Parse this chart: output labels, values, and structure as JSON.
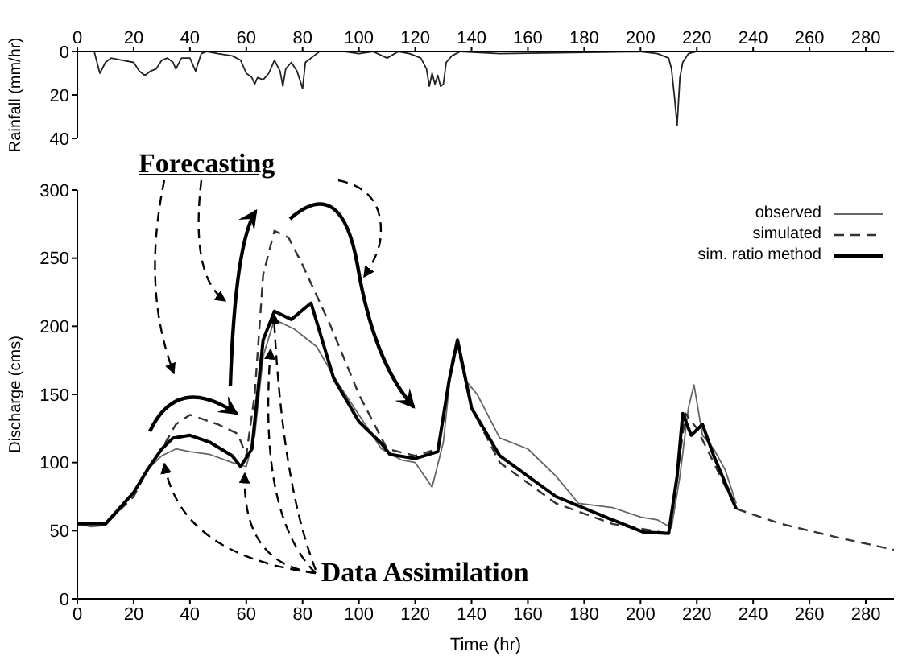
{
  "chart_data": [
    {
      "type": "line",
      "ylabel": "Rainfall (mm/hr)",
      "xlim": [
        0,
        290
      ],
      "xticks": [
        0,
        20,
        40,
        60,
        80,
        100,
        120,
        140,
        160,
        180,
        200,
        220,
        240,
        260,
        280
      ],
      "ylim": [
        40,
        0
      ],
      "yticks": [
        0,
        20,
        40
      ],
      "grid": false,
      "marker": "none",
      "series": [
        {
          "color": "#222222",
          "line_style": "solid",
          "x": [
            0,
            6,
            8,
            10,
            12,
            16,
            20,
            22,
            24,
            26,
            28,
            30,
            32,
            34,
            35,
            37,
            40,
            42,
            44,
            46,
            50,
            55,
            58,
            60,
            62,
            63,
            64,
            66,
            68,
            70,
            72,
            73,
            74,
            76,
            78,
            80,
            81,
            83,
            86,
            95,
            100,
            105,
            110,
            114,
            118,
            122,
            124,
            125,
            126,
            127,
            128,
            129,
            130,
            131,
            133,
            136,
            150,
            200,
            206,
            208,
            210,
            211,
            212,
            213,
            214,
            215,
            217,
            220,
            240,
            290
          ],
          "values": [
            0,
            0,
            10,
            5,
            3,
            4,
            5,
            9,
            11,
            9,
            8,
            4,
            3,
            5,
            8,
            3,
            3,
            9,
            1,
            0,
            1,
            2,
            4,
            10,
            12,
            15,
            12,
            13,
            10,
            4,
            9,
            16,
            8,
            5,
            9,
            17,
            5,
            3,
            0,
            0,
            1,
            0,
            3,
            0,
            1,
            3,
            8,
            16,
            10,
            15,
            11,
            16,
            15,
            5,
            2,
            0,
            1,
            0,
            1,
            2,
            3,
            8,
            20,
            34,
            12,
            5,
            1,
            0,
            0,
            0
          ]
        }
      ]
    },
    {
      "type": "line",
      "xlabel": "Time (hr)",
      "ylabel": "Discharge (cms)",
      "xlim": [
        0,
        290
      ],
      "xticks": [
        0,
        20,
        40,
        60,
        80,
        100,
        120,
        140,
        160,
        180,
        200,
        220,
        240,
        260,
        280
      ],
      "ylim": [
        0,
        300
      ],
      "yticks": [
        0,
        50,
        100,
        150,
        200,
        250,
        300
      ],
      "grid": false,
      "legend": "top right",
      "marker": "none",
      "annotations": [
        "Forecasting",
        {
          "text": "Data Assimilation",
          "x": 58,
          "y": 97
        }
      ],
      "series": [
        {
          "name": "observed",
          "color": "#666666",
          "line_style": "solid",
          "x": [
            0,
            5,
            10,
            15,
            20,
            25,
            30,
            35,
            40,
            47,
            55,
            60,
            63,
            66,
            70,
            77,
            85,
            92,
            100,
            108,
            115,
            120,
            126,
            130,
            133,
            135,
            138,
            142,
            150,
            160,
            170,
            178,
            190,
            200,
            206,
            211,
            214,
            217,
            219,
            222,
            226,
            230,
            234
          ],
          "values": [
            55,
            53,
            54,
            65,
            78,
            95,
            105,
            110,
            108,
            106,
            100,
            97,
            120,
            178,
            205,
            198,
            185,
            160,
            135,
            110,
            102,
            100,
            82,
            115,
            175,
            190,
            160,
            150,
            118,
            110,
            90,
            70,
            67,
            60,
            58,
            52,
            90,
            140,
            157,
            120,
            110,
            95,
            70
          ]
        },
        {
          "name": "simulated",
          "color": "#333333",
          "line_style": "dashed",
          "x": [
            0,
            10,
            20,
            25,
            30,
            35,
            40,
            50,
            57,
            60,
            63,
            66,
            70,
            75,
            80,
            90,
            100,
            110,
            120,
            128,
            132,
            135,
            140,
            150,
            170,
            190,
            210,
            213,
            216,
            220,
            226,
            234,
            250,
            270,
            290
          ],
          "values": [
            55,
            55,
            75,
            95,
            110,
            128,
            135,
            128,
            121,
            105,
            150,
            238,
            270,
            265,
            245,
            200,
            150,
            110,
            105,
            110,
            160,
            185,
            140,
            100,
            70,
            55,
            48,
            90,
            136,
            125,
            100,
            66,
            55,
            45,
            36
          ]
        },
        {
          "name": "sim. ratio method",
          "color": "#000000",
          "line_style": "solid",
          "x": [
            0,
            10,
            20,
            25,
            30,
            34,
            40,
            47,
            55,
            58,
            62,
            66,
            70,
            76,
            83,
            91,
            100,
            108,
            111,
            120,
            128,
            132,
            135,
            140,
            150,
            170,
            190,
            201,
            210,
            213,
            215,
            218,
            222,
            226,
            234
          ],
          "values": [
            55,
            55,
            78,
            95,
            110,
            118,
            120,
            115,
            105,
            97,
            110,
            190,
            211,
            205,
            217,
            162,
            130,
            114,
            106,
            103,
            108,
            160,
            190,
            140,
            105,
            75,
            58,
            49,
            48,
            90,
            136,
            120,
            128,
            105,
            66
          ]
        }
      ]
    }
  ]
}
